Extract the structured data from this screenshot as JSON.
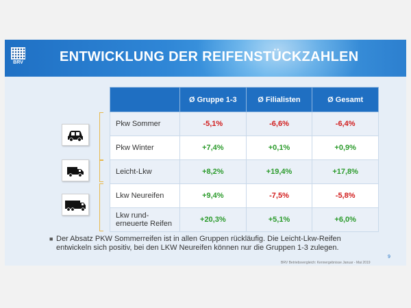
{
  "header": {
    "title": "ENTWICKLUNG DER REIFENSTÜCKZAHLEN",
    "logo_text": "BRV"
  },
  "table": {
    "columns": [
      "",
      "Ø Gruppe 1-3",
      "Ø Filialisten",
      "Ø Gesamt"
    ],
    "rows": [
      {
        "label": "Pkw Sommer",
        "values": [
          "-5,1%",
          "-6,6%",
          "-6,4%"
        ]
      },
      {
        "label": "Pkw Winter",
        "values": [
          "+7,4%",
          "+0,1%",
          "+0,9%"
        ]
      },
      {
        "label": "Leicht-Lkw",
        "values": [
          "+8,2%",
          "+19,4%",
          "+17,8%"
        ]
      },
      {
        "label": "Lkw Neureifen",
        "values": [
          "+9,4%",
          "-7,5%",
          "-5,8%"
        ]
      },
      {
        "label_line1": "Lkw rund-",
        "label_line2": "erneuerte Reifen",
        "values": [
          "+20,3%",
          "+5,1%",
          "+6,0%"
        ]
      }
    ]
  },
  "icons": [
    "car-icon",
    "van-icon",
    "truck-icon"
  ],
  "bullet": "Der Absatz PKW Sommerreifen ist in allen Gruppen rückläufig. Die Leicht-Lkw-Reifen entwickeln sich positiv, bei den LKW Neureifen können nur die Gruppen 1-3 zulegen.",
  "page_number": "9",
  "footer": "BRV Betriebsvergleich: Kennergebnisse Januar - Mai 2019",
  "colors": {
    "header_blue": "#1f6fc2",
    "negative": "#d11a1a",
    "positive": "#2a9a2a",
    "bracket": "#e8b84a"
  }
}
